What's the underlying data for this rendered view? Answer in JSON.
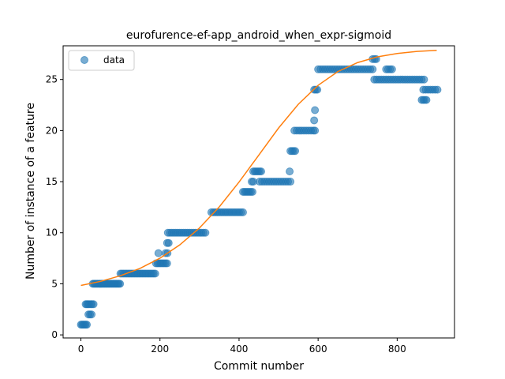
{
  "chart_data": {
    "type": "scatter",
    "title": "eurofurence-ef-app_android_when_expr-sigmoid",
    "xlabel": "Commit number",
    "ylabel": "Number of instance of a feature",
    "xlim": [
      -45,
      945
    ],
    "ylim": [
      -0.3,
      28.3
    ],
    "xticks": [
      0,
      200,
      400,
      600,
      800
    ],
    "yticks": [
      0,
      5,
      10,
      15,
      20,
      25
    ],
    "grid": false,
    "legend": {
      "placement": "upper-left",
      "entries": [
        "data"
      ]
    },
    "colors": {
      "data": "#1f77b4",
      "fit": "#ff7f0e"
    },
    "series": [
      {
        "name": "data",
        "kind": "scatter",
        "points": [
          [
            0,
            1
          ],
          [
            3,
            1
          ],
          [
            6,
            1
          ],
          [
            9,
            1
          ],
          [
            12,
            1
          ],
          [
            15,
            1
          ],
          [
            12,
            3
          ],
          [
            15,
            3
          ],
          [
            18,
            3
          ],
          [
            21,
            3
          ],
          [
            25,
            3
          ],
          [
            28,
            3
          ],
          [
            32,
            3
          ],
          [
            19,
            2
          ],
          [
            23,
            2
          ],
          [
            27,
            2
          ],
          [
            30,
            5
          ],
          [
            33,
            5
          ],
          [
            36,
            5
          ],
          [
            39,
            5
          ],
          [
            42,
            5
          ],
          [
            45,
            5
          ],
          [
            48,
            5
          ],
          [
            51,
            5
          ],
          [
            54,
            5
          ],
          [
            57,
            5
          ],
          [
            60,
            5
          ],
          [
            63,
            5
          ],
          [
            66,
            5
          ],
          [
            69,
            5
          ],
          [
            72,
            5
          ],
          [
            75,
            5
          ],
          [
            78,
            5
          ],
          [
            81,
            5
          ],
          [
            84,
            5
          ],
          [
            87,
            5
          ],
          [
            90,
            5
          ],
          [
            93,
            5
          ],
          [
            96,
            5
          ],
          [
            99,
            5
          ],
          [
            100,
            6
          ],
          [
            104,
            6
          ],
          [
            108,
            6
          ],
          [
            112,
            6
          ],
          [
            116,
            6
          ],
          [
            120,
            6
          ],
          [
            124,
            6
          ],
          [
            128,
            6
          ],
          [
            132,
            6
          ],
          [
            136,
            6
          ],
          [
            140,
            6
          ],
          [
            144,
            6
          ],
          [
            148,
            6
          ],
          [
            152,
            6
          ],
          [
            156,
            6
          ],
          [
            160,
            6
          ],
          [
            164,
            6
          ],
          [
            168,
            6
          ],
          [
            172,
            6
          ],
          [
            176,
            6
          ],
          [
            180,
            6
          ],
          [
            184,
            6
          ],
          [
            188,
            6
          ],
          [
            190,
            7
          ],
          [
            194,
            7
          ],
          [
            198,
            7
          ],
          [
            202,
            7
          ],
          [
            206,
            7
          ],
          [
            210,
            7
          ],
          [
            214,
            7
          ],
          [
            218,
            7
          ],
          [
            196,
            8
          ],
          [
            214,
            8
          ],
          [
            219,
            8
          ],
          [
            218,
            9
          ],
          [
            222,
            9
          ],
          [
            220,
            10
          ],
          [
            225,
            10
          ],
          [
            230,
            10
          ],
          [
            235,
            10
          ],
          [
            240,
            10
          ],
          [
            245,
            10
          ],
          [
            250,
            10
          ],
          [
            255,
            10
          ],
          [
            260,
            10
          ],
          [
            265,
            10
          ],
          [
            270,
            10
          ],
          [
            275,
            10
          ],
          [
            280,
            10
          ],
          [
            285,
            10
          ],
          [
            290,
            10
          ],
          [
            295,
            10
          ],
          [
            300,
            10
          ],
          [
            305,
            10
          ],
          [
            310,
            10
          ],
          [
            315,
            10
          ],
          [
            330,
            12
          ],
          [
            335,
            12
          ],
          [
            340,
            12
          ],
          [
            345,
            12
          ],
          [
            350,
            12
          ],
          [
            355,
            12
          ],
          [
            360,
            12
          ],
          [
            365,
            12
          ],
          [
            370,
            12
          ],
          [
            375,
            12
          ],
          [
            380,
            12
          ],
          [
            385,
            12
          ],
          [
            390,
            12
          ],
          [
            395,
            12
          ],
          [
            400,
            12
          ],
          [
            405,
            12
          ],
          [
            410,
            12
          ],
          [
            410,
            14
          ],
          [
            414,
            14
          ],
          [
            418,
            14
          ],
          [
            422,
            14
          ],
          [
            426,
            14
          ],
          [
            430,
            14
          ],
          [
            434,
            14
          ],
          [
            432,
            15
          ],
          [
            436,
            15
          ],
          [
            436,
            16
          ],
          [
            440,
            16
          ],
          [
            444,
            16
          ],
          [
            448,
            16
          ],
          [
            452,
            16
          ],
          [
            456,
            16
          ],
          [
            452,
            15
          ],
          [
            458,
            15
          ],
          [
            464,
            15
          ],
          [
            470,
            15
          ],
          [
            476,
            15
          ],
          [
            482,
            15
          ],
          [
            488,
            15
          ],
          [
            494,
            15
          ],
          [
            500,
            15
          ],
          [
            506,
            15
          ],
          [
            512,
            15
          ],
          [
            518,
            15
          ],
          [
            524,
            15
          ],
          [
            530,
            15
          ],
          [
            528,
            16
          ],
          [
            530,
            18
          ],
          [
            534,
            18
          ],
          [
            538,
            18
          ],
          [
            542,
            18
          ],
          [
            540,
            20
          ],
          [
            546,
            20
          ],
          [
            552,
            20
          ],
          [
            558,
            20
          ],
          [
            564,
            20
          ],
          [
            570,
            20
          ],
          [
            576,
            20
          ],
          [
            582,
            20
          ],
          [
            588,
            20
          ],
          [
            592,
            20
          ],
          [
            590,
            21
          ],
          [
            592,
            22
          ],
          [
            590,
            24
          ],
          [
            594,
            24
          ],
          [
            598,
            24
          ],
          [
            600,
            26
          ],
          [
            606,
            26
          ],
          [
            612,
            26
          ],
          [
            618,
            26
          ],
          [
            624,
            26
          ],
          [
            630,
            26
          ],
          [
            636,
            26
          ],
          [
            642,
            26
          ],
          [
            648,
            26
          ],
          [
            654,
            26
          ],
          [
            660,
            26
          ],
          [
            666,
            26
          ],
          [
            672,
            26
          ],
          [
            678,
            26
          ],
          [
            684,
            26
          ],
          [
            690,
            26
          ],
          [
            696,
            26
          ],
          [
            702,
            26
          ],
          [
            708,
            26
          ],
          [
            714,
            26
          ],
          [
            720,
            26
          ],
          [
            726,
            26
          ],
          [
            732,
            26
          ],
          [
            738,
            26
          ],
          [
            738,
            27
          ],
          [
            743,
            27
          ],
          [
            747,
            27
          ],
          [
            742,
            25
          ],
          [
            748,
            25
          ],
          [
            754,
            25
          ],
          [
            760,
            25
          ],
          [
            766,
            25
          ],
          [
            772,
            25
          ],
          [
            778,
            25
          ],
          [
            784,
            25
          ],
          [
            790,
            25
          ],
          [
            796,
            25
          ],
          [
            802,
            25
          ],
          [
            808,
            25
          ],
          [
            814,
            25
          ],
          [
            820,
            25
          ],
          [
            826,
            25
          ],
          [
            832,
            25
          ],
          [
            838,
            25
          ],
          [
            844,
            25
          ],
          [
            850,
            25
          ],
          [
            856,
            25
          ],
          [
            862,
            25
          ],
          [
            868,
            25
          ],
          [
            772,
            26
          ],
          [
            777,
            26
          ],
          [
            782,
            26
          ],
          [
            787,
            26
          ],
          [
            862,
            23
          ],
          [
            866,
            23
          ],
          [
            870,
            23
          ],
          [
            874,
            23
          ],
          [
            866,
            24
          ],
          [
            872,
            24
          ],
          [
            878,
            24
          ],
          [
            884,
            24
          ],
          [
            890,
            24
          ],
          [
            896,
            24
          ],
          [
            902,
            24
          ]
        ]
      },
      {
        "name": "",
        "kind": "line",
        "points": [
          [
            0,
            4.84
          ],
          [
            50,
            5.24
          ],
          [
            100,
            5.79
          ],
          [
            150,
            6.52
          ],
          [
            200,
            7.51
          ],
          [
            250,
            8.81
          ],
          [
            300,
            10.47
          ],
          [
            350,
            12.53
          ],
          [
            400,
            14.96
          ],
          [
            450,
            17.6
          ],
          [
            500,
            20.25
          ],
          [
            550,
            22.58
          ],
          [
            600,
            24.43
          ],
          [
            650,
            25.78
          ],
          [
            700,
            26.66
          ],
          [
            750,
            27.22
          ],
          [
            800,
            27.55
          ],
          [
            850,
            27.75
          ],
          [
            900,
            27.86
          ]
        ]
      }
    ]
  }
}
